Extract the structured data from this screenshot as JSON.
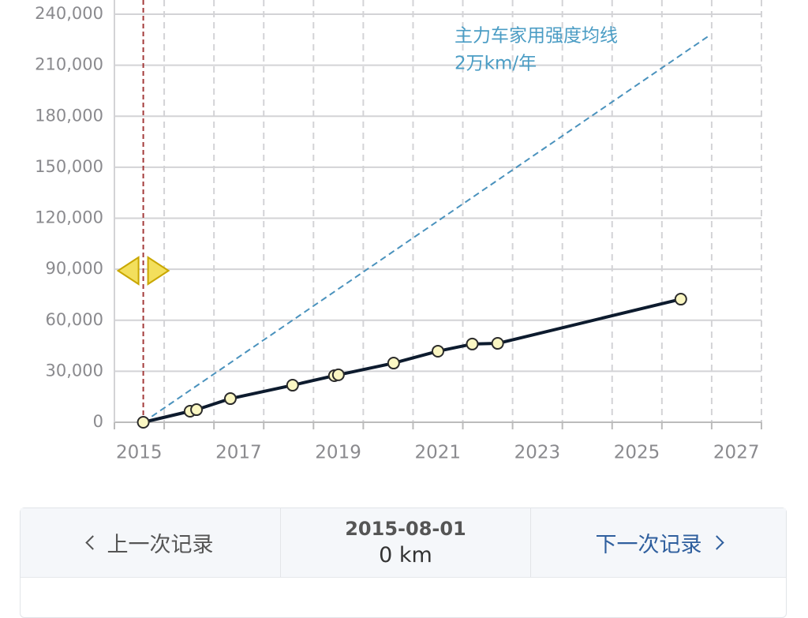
{
  "chart_data": {
    "type": "line",
    "x": [
      2015.58,
      2016.52,
      2016.65,
      2017.33,
      2018.58,
      2019.42,
      2019.5,
      2020.61,
      2021.5,
      2022.19,
      2022.7,
      2026.38
    ],
    "series": [
      {
        "color": "#0d1b2e",
        "values": [
          0,
          6500,
          7400,
          13900,
          21800,
          27400,
          27900,
          34800,
          41800,
          46000,
          46400,
          72400
        ]
      }
    ],
    "reference_line": {
      "x": [
        2015.58,
        2026.93
      ],
      "values": [
        0,
        227000
      ],
      "color": "#4a92bd"
    },
    "annotations": [
      "主力车家用强度均线",
      "2万km/年"
    ],
    "cursor_x": 2015.58,
    "xlim": [
      2015,
      2028
    ],
    "xticks": [
      2015,
      2017,
      2019,
      2021,
      2023,
      2025,
      2027
    ],
    "x_minor_ticks": [
      2016,
      2018,
      2020,
      2022,
      2024,
      2026,
      2028
    ],
    "ylim": [
      0,
      240000
    ],
    "yticks": [
      0,
      {
        "value": 30000,
        "label": "30,000"
      },
      {
        "value": 60000,
        "label": "60,000"
      },
      {
        "value": 90000,
        "label": "90,000"
      },
      {
        "value": 120000,
        "label": "120,000"
      },
      {
        "value": 150000,
        "label": "150,000"
      },
      {
        "value": 180000,
        "label": "180,000"
      },
      {
        "value": 210000,
        "label": "210,000"
      },
      {
        "value": 240000,
        "label": "240,000"
      }
    ],
    "grid": true
  },
  "nav": {
    "prev": "上一次记录",
    "date": "2015-08-01",
    "distance": "0 km",
    "next": "下一次记录"
  }
}
